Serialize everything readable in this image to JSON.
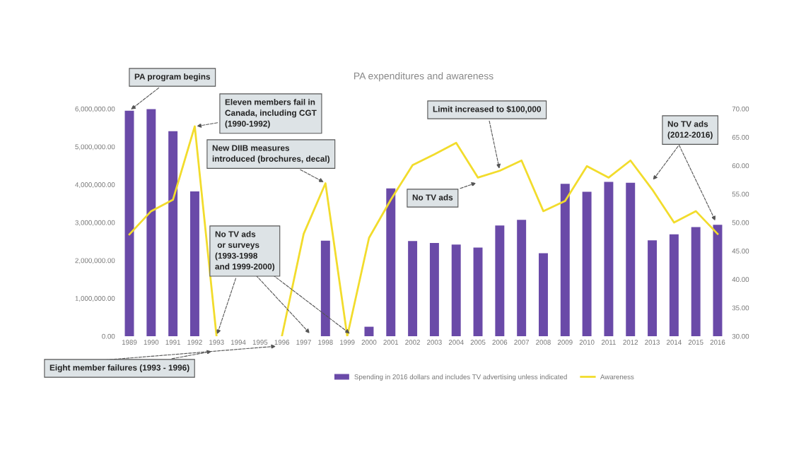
{
  "chart_data": {
    "type": "bar",
    "title": "PA expenditures and awareness",
    "categories": [
      "1989",
      "1990",
      "1991",
      "1992",
      "1993",
      "1994",
      "1995",
      "1996",
      "1997",
      "1998",
      "1999",
      "2000",
      "2001",
      "2002",
      "2003",
      "2004",
      "2005",
      "2006",
      "2007",
      "2008",
      "2009",
      "2010",
      "2011",
      "2012",
      "2013",
      "2014",
      "2015",
      "2016"
    ],
    "series": [
      {
        "name": "Spending in 2016 dollars and includes TV advertising unless indicated",
        "color": "#6a4aa8",
        "values": [
          5950000,
          5990000,
          5410000,
          3820000,
          null,
          null,
          null,
          null,
          null,
          2520000,
          null,
          250000,
          3900000,
          2510000,
          2460000,
          2420000,
          2340000,
          2920000,
          3070000,
          2190000,
          4020000,
          3810000,
          4070000,
          4050000,
          2530000,
          2690000,
          2880000,
          2940000
        ]
      },
      {
        "name": "Awareness",
        "type": "line",
        "axis": "y2",
        "color": "#f2dc2c",
        "values": [
          47.9,
          52.0,
          54.0,
          66.9,
          30,
          null,
          null,
          30,
          48.0,
          56.9,
          30,
          47.3,
          54.0,
          60.1,
          62.0,
          64.0,
          57.9,
          59.1,
          60.9,
          52.0,
          53.8,
          59.9,
          57.9,
          60.9,
          55.8,
          50.0,
          52.0,
          48.0
        ]
      }
    ],
    "ylim": [
      0,
      6000000
    ],
    "yticks": [
      {
        "value": 0,
        "label": "0.00"
      },
      {
        "value": 1000000,
        "label": "1,000,000.00"
      },
      {
        "value": 2000000,
        "label": "2,000,000.00"
      },
      {
        "value": 3000000,
        "label": "3,000,000.00"
      },
      {
        "value": 4000000,
        "label": "4,000,000.00"
      },
      {
        "value": 5000000,
        "label": "5,000,000.00"
      },
      {
        "value": 6000000,
        "label": "6,000,000.00"
      }
    ],
    "y2lim": [
      30,
      70
    ],
    "y2ticks": [
      {
        "value": 30,
        "label": "30.00"
      },
      {
        "value": 35,
        "label": "35.00"
      },
      {
        "value": 40,
        "label": "40.00"
      },
      {
        "value": 45,
        "label": "45.00"
      },
      {
        "value": 50,
        "label": "50.00"
      },
      {
        "value": 55,
        "label": "55.00"
      },
      {
        "value": 60,
        "label": "60.00"
      },
      {
        "value": 65,
        "label": "65.00"
      },
      {
        "value": 70,
        "label": "70.00"
      }
    ],
    "legend": "bottom",
    "grid": false,
    "annotations": [
      {
        "text": "PA program begins",
        "x": "1989",
        "y": 5950000
      },
      {
        "text": "Eleven members fail in\nCanada, including CGT\n(1990-1992)",
        "x": "1992",
        "y": 5530000
      },
      {
        "text": "New DIIB measures\nintroduced (brochures, decal)",
        "x": "1998",
        "y": 4040000
      },
      {
        "text": "No TV ads\n or surveys\n(1993-1998\nand 1999-2000)",
        "x": "1993",
        "y": 0
      },
      "Eight member failures (1993 - 1996)",
      {
        "text": "Limit increased to $100,000",
        "x": "2006",
        "y": 4370000
      },
      "No TV ads",
      "No TV ads\n(2012-2016)"
    ]
  }
}
